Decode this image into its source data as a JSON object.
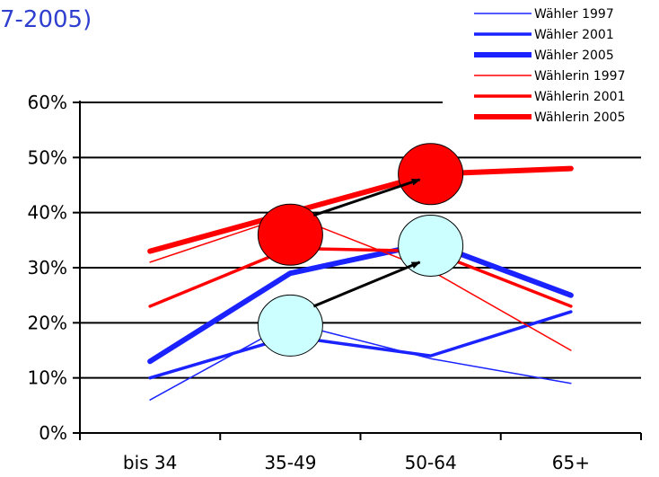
{
  "title": "7-2005)",
  "colors": {
    "blue": "#1a23ff",
    "red": "#ff0000",
    "ellipse_red": "#ff0000",
    "ellipse_cyan": "#ccffff",
    "title": "#2f3fd0"
  },
  "annotations": [
    {
      "kind": "ellipse",
      "color": "red",
      "at": {
        "x": "35-49",
        "y": 36
      }
    },
    {
      "kind": "ellipse",
      "color": "red",
      "at": {
        "x": "50-64",
        "y": 47
      }
    },
    {
      "kind": "ellipse",
      "color": "cyan",
      "at": {
        "x": "35-49",
        "y": 19.5
      }
    },
    {
      "kind": "ellipse",
      "color": "cyan",
      "at": {
        "x": "50-64",
        "y": 34
      }
    },
    {
      "kind": "arrow",
      "from": {
        "x": "35-49",
        "y": 39.5
      },
      "to": {
        "x": "50-64",
        "y": 46
      }
    },
    {
      "kind": "arrow",
      "from": {
        "x": "35-49",
        "y": 23
      },
      "to": {
        "x": "50-64",
        "y": 31
      }
    }
  ],
  "chart_data": {
    "type": "line",
    "title": "7-2005)",
    "xlabel": "",
    "ylabel": "",
    "categories": [
      "bis 34",
      "35-49",
      "50-64",
      "65+"
    ],
    "yticks": [
      "0%",
      "10%",
      "20%",
      "30%",
      "40%",
      "50%",
      "60%"
    ],
    "ylim": [
      0,
      60
    ],
    "grid": true,
    "legend_position": "top-right",
    "series": [
      {
        "name": "Wähler 1997",
        "color": "blue",
        "weight": "thin",
        "values": [
          6,
          20,
          13.5,
          9
        ]
      },
      {
        "name": "Wähler 2001",
        "color": "blue",
        "weight": "medium",
        "values": [
          10,
          17.5,
          14,
          22
        ]
      },
      {
        "name": "Wähler 2005",
        "color": "blue",
        "weight": "thick",
        "values": [
          13,
          29,
          34.5,
          25
        ]
      },
      {
        "name": "Wählerin 1997",
        "color": "red",
        "weight": "thin",
        "values": [
          31,
          39.5,
          29.5,
          15
        ]
      },
      {
        "name": "Wählerin 2001",
        "color": "red",
        "weight": "medium",
        "values": [
          23,
          33.5,
          33,
          23
        ]
      },
      {
        "name": "Wählerin 2005",
        "color": "red",
        "weight": "thick",
        "values": [
          33,
          40,
          47,
          48
        ]
      }
    ]
  }
}
